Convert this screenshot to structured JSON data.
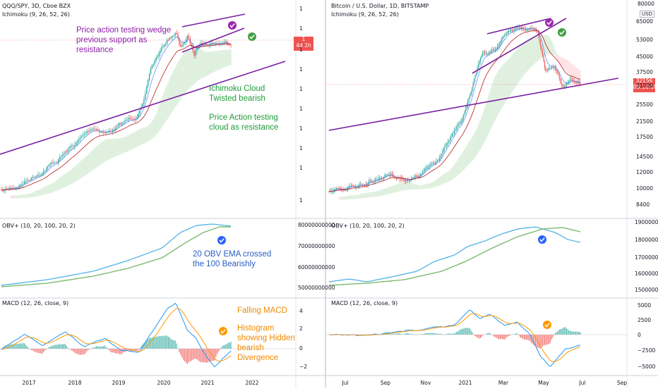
{
  "colors": {
    "up": "#26a69a",
    "down": "#ef5350",
    "purple": "#7b1fa2",
    "cloudBull": "#c8e6c9",
    "cloudBear": "#ffcdd2",
    "obvFast": "#5db7e8",
    "obvSlow": "#7cbb6f",
    "macd": "#2196f3",
    "signal": "#ff9800",
    "badgeCheckPurple": "#9c27b0",
    "badgeCheckGreen": "#43a047",
    "badgeCheckBlue": "#2962ff",
    "badgeCheckOrange": "#ff9800"
  },
  "left": {
    "title": "QQQ/SPY, 3D, Cboe BZX",
    "ichimoku_label": "Ichimoku (9, 26, 52, 26)",
    "obv_label": "OBV+ (10, 20, 100, 20, 2)",
    "macd_label": "MACD (12, 26, close, 9)",
    "price_ticks": [
      "1",
      "1",
      "1",
      "1",
      "1",
      "1",
      "1",
      "1",
      "1",
      "1"
    ],
    "price_tag": "1",
    "price_tag_sub": "4d 2h",
    "obv_ticks": [
      "80000000000",
      "70000000000",
      "60000000000",
      "50000000000"
    ],
    "macd_ticks": [
      "4",
      "2",
      "0",
      "−2"
    ],
    "x_ticks": [
      "2017",
      "2018",
      "2019",
      "2020",
      "2021",
      "2022"
    ],
    "annotations": {
      "wedge": [
        "Price action testing wedge",
        "previous support as",
        "resistance"
      ],
      "cloud": [
        "Ichimoku Cloud",
        "Twisted bearish"
      ],
      "pa_cloud": [
        "Price Action testing",
        "cloud as resistance"
      ],
      "obv": [
        "20 OBV EMA crossed",
        "the 100 Bearishly"
      ],
      "macd_fall": "Falling MACD",
      "hist": [
        "Histogram",
        "showing Hidden",
        "bearish",
        "Divergence"
      ]
    }
  },
  "right": {
    "title": "Bitcoin / U.S. Dollar, 1D, BITSTAMP",
    "ichimoku_label": "Ichimoku (9, 26, 52, 26)",
    "obv_label": "OBV+ (10, 20, 100, 20, 2)",
    "macd_label": "MACD (12, 26, close, 9)",
    "price_ticks": [
      "65000",
      "53000",
      "45000",
      "37500",
      "31000",
      "25500",
      "21500",
      "17500",
      "14500",
      "12000",
      "10000",
      "8400"
    ],
    "price_top": "80000",
    "currency": "USD",
    "price_tag": "32156",
    "price_tag_sub": "05:10:18",
    "obv_ticks": [
      "1900000",
      "1800000",
      "1700000",
      "1600000",
      "1500000"
    ],
    "macd_ticks": [
      "5000",
      "2500",
      "0",
      "−2500",
      "−5000"
    ],
    "x_ticks": [
      "Jul",
      "Sep",
      "Nov",
      "2021",
      "Mar",
      "May",
      "Jul",
      "Sep"
    ]
  },
  "chart_data": [
    {
      "type": "line",
      "name": "QQQ/SPY",
      "x": [
        "2016.5",
        "2017",
        "2018",
        "2019",
        "2020",
        "2020.3",
        "2020.7",
        "2021",
        "2021.3",
        "2021.5"
      ],
      "values": [
        1,
        1.03,
        1.1,
        1.17,
        1.25,
        1.42,
        1.58,
        1.6,
        1.48,
        1.55
      ]
    },
    {
      "type": "line",
      "name": "BTCUSD",
      "x": [
        "Jun",
        "Jul",
        "Sep",
        "Nov",
        "2021",
        "Mar",
        "Apr",
        "May",
        "Jun",
        "Jul"
      ],
      "values": [
        9500,
        9300,
        10500,
        13500,
        29000,
        55000,
        63000,
        40000,
        34000,
        32156
      ]
    }
  ]
}
